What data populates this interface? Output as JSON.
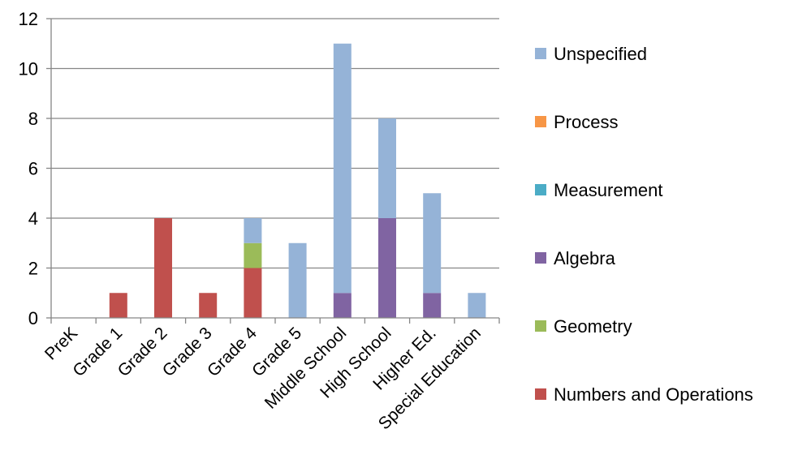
{
  "chart_data": {
    "type": "bar",
    "stacked": true,
    "categories": [
      "PreK",
      "Grade 1",
      "Grade 2",
      "Grade 3",
      "Grade 4",
      "Grade 5",
      "Middle School",
      "High School",
      "Higher Ed.",
      "Special Education"
    ],
    "series": [
      {
        "name": "Numbers and Operations",
        "color": "#C0504D",
        "values": [
          0,
          1,
          4,
          1,
          2,
          0,
          0,
          0,
          0,
          0
        ]
      },
      {
        "name": "Geometry",
        "color": "#9BBB59",
        "values": [
          0,
          0,
          0,
          0,
          1,
          0,
          0,
          0,
          0,
          0
        ]
      },
      {
        "name": "Algebra",
        "color": "#8064A2",
        "values": [
          0,
          0,
          0,
          0,
          0,
          0,
          1,
          4,
          1,
          0
        ]
      },
      {
        "name": "Measurement",
        "color": "#4BACC6",
        "values": [
          0,
          0,
          0,
          0,
          0,
          0,
          0,
          0,
          0,
          0
        ]
      },
      {
        "name": "Process",
        "color": "#F79646",
        "values": [
          0,
          0,
          0,
          0,
          0,
          0,
          0,
          0,
          0,
          0
        ]
      },
      {
        "name": "Unspecified",
        "color": "#95B3D7",
        "values": [
          0,
          0,
          0,
          0,
          1,
          3,
          10,
          4,
          4,
          1
        ]
      }
    ],
    "ylim": [
      0,
      12
    ],
    "yticks": [
      0,
      2,
      4,
      6,
      8,
      10,
      12
    ],
    "grid": true,
    "legend_position": "right",
    "title": "",
    "xlabel": "",
    "ylabel": ""
  }
}
